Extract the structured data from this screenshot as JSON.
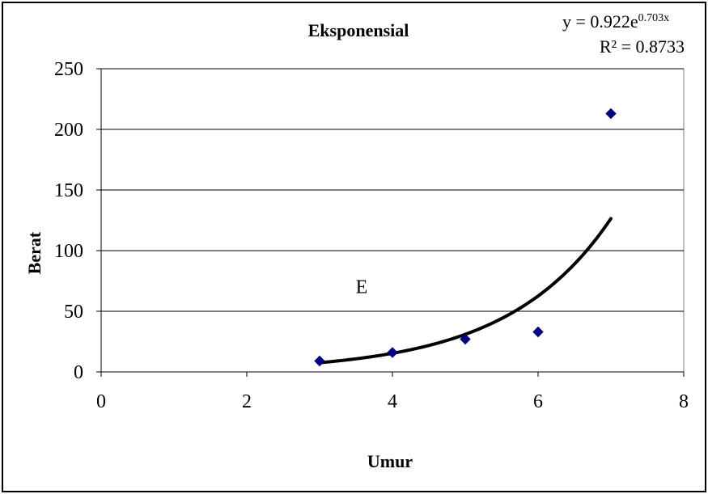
{
  "chart_data": {
    "type": "scatter",
    "title": "Eksponensial",
    "xlabel": "Umur",
    "ylabel": "Berat",
    "xlim": [
      0,
      8
    ],
    "ylim": [
      0,
      250
    ],
    "x_ticks": [
      0,
      2,
      4,
      6,
      8
    ],
    "y_ticks": [
      0,
      50,
      100,
      150,
      200,
      250
    ],
    "x_tick_labels": [
      "0",
      "2",
      "4",
      "6",
      "8"
    ],
    "y_tick_labels": [
      "0",
      "50",
      "100",
      "150",
      "200",
      "250"
    ],
    "grid": "horizontal",
    "series": [
      {
        "x": [
          3,
          4,
          5,
          6,
          7
        ],
        "y": [
          9,
          16,
          27,
          33,
          213
        ],
        "marker": "diamond",
        "color": "#00008B"
      }
    ],
    "trendline": {
      "type": "exponential",
      "a": 0.922,
      "b": 0.703,
      "x_range": [
        3,
        7
      ],
      "color": "#000000",
      "equation_prefix": "y = 0.922e",
      "equation_exponent": "0.703x",
      "r_squared": "R² = 0.8733"
    },
    "annotation": "E",
    "annotation_at": [
      3.5,
      65
    ]
  }
}
